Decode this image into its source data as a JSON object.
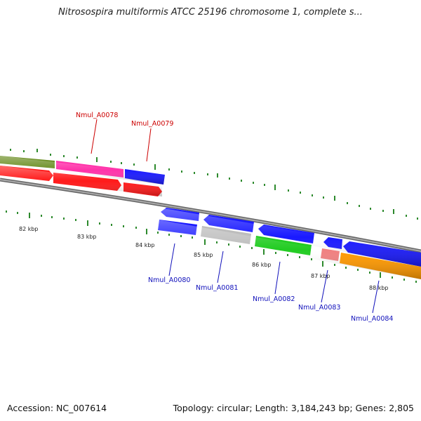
{
  "title": "Nitrosospira multiformis ATCC 25196 chromosome 1, complete s...",
  "accession": "Accession: NC_007614",
  "summary": "Topology: circular; Length: 3,184,243 bp; Genes: 2,805",
  "scale_labels": [
    "82 kbp",
    "83 kbp",
    "84 kbp",
    "85 kbp",
    "86 kbp",
    "87 kbp",
    "88 kbp"
  ],
  "genes_top": [
    {
      "name": "Nmul_A0078",
      "color": "#cc0000"
    },
    {
      "name": "Nmul_A0079",
      "color": "#cc0000"
    }
  ],
  "genes_bottom": [
    {
      "name": "Nmul_A0080",
      "color": "#1010bb"
    },
    {
      "name": "Nmul_A0081",
      "color": "#1010bb"
    },
    {
      "name": "Nmul_A0082",
      "color": "#1010bb"
    },
    {
      "name": "Nmul_A0083",
      "color": "#1010bb"
    },
    {
      "name": "Nmul_A0084",
      "color": "#1010bb"
    }
  ],
  "feature_colors": {
    "red": "#ff1a1a",
    "blue": "#1a1aff",
    "olive": "#6b8e23",
    "pink": "#ff33aa",
    "grey": "#bdbdbd",
    "green": "#22cc22",
    "salmon": "#f08080",
    "orange": "#ff9900",
    "backbone": "#888888",
    "tick": "#2d8a2d"
  }
}
